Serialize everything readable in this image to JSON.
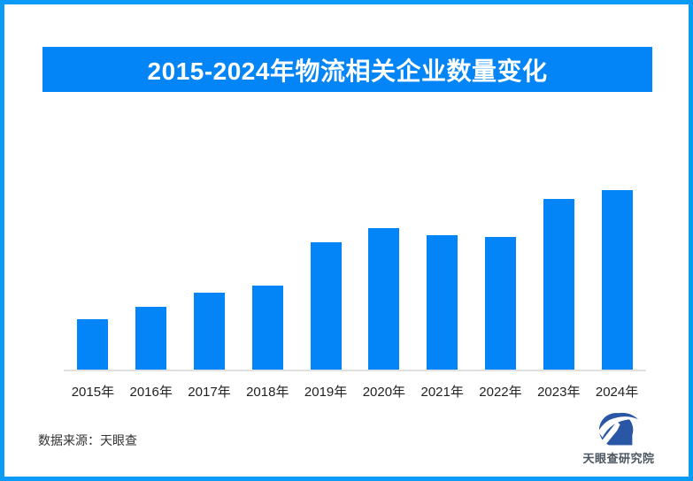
{
  "page": {
    "background": "#ffffff",
    "frame_border_color": "#0a9bf7"
  },
  "header": {
    "title": "2015-2024年物流相关企业数量变化",
    "bg_color": "#0385f8",
    "text_color": "#ffffff"
  },
  "chart_data": {
    "type": "bar",
    "title": "2015-2024年物流相关企业数量变化",
    "categories": [
      "2015年",
      "2016年",
      "2017年",
      "2018年",
      "2019年",
      "2020年",
      "2021年",
      "2022年",
      "2023年",
      "2024年"
    ],
    "values": [
      28,
      35,
      43,
      47,
      71,
      79,
      75,
      74,
      95,
      100
    ],
    "values_note": "no y-axis or data labels shown; values are relative bar heights with 2024 = 100",
    "xlabel": "",
    "ylabel": "",
    "bar_color": "#0385f8",
    "axis_line_color": "#e0e0e0",
    "grid": false,
    "legend": "none"
  },
  "footer": {
    "source_label": "数据来源：天眼查",
    "logo_text": "天眼查研究院",
    "logo_blue": "#2a57a5"
  }
}
